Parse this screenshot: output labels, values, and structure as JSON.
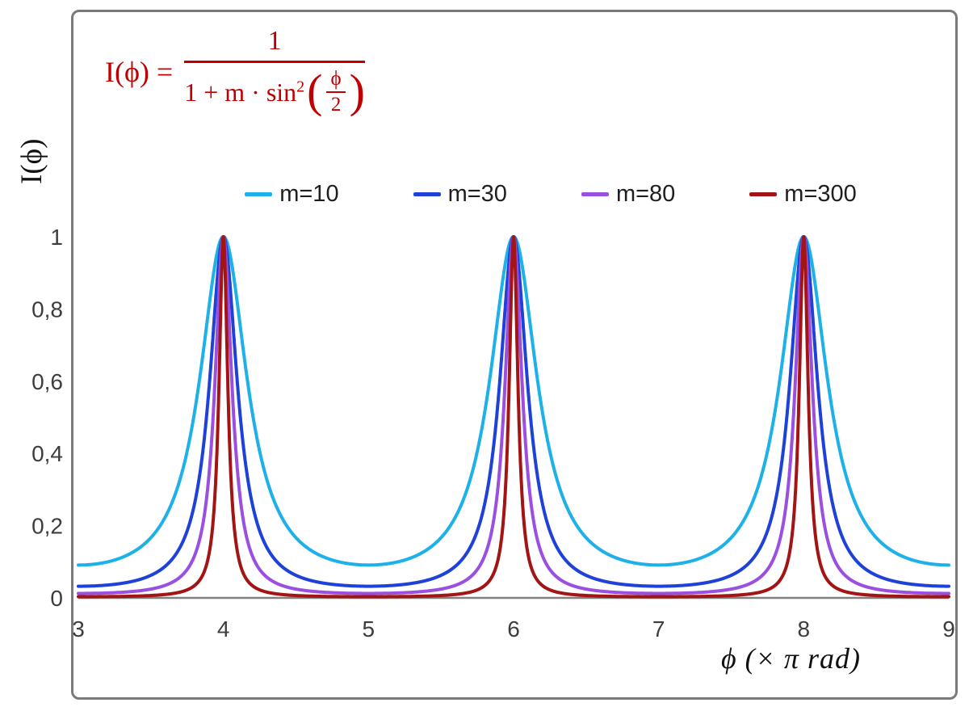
{
  "chart_frame": {
    "border_color": "#7a7a7a"
  },
  "formula": {
    "color": "#c00000",
    "lhs": "I(ϕ) =",
    "numerator": "1",
    "den_prefix": "1 + m · sin",
    "den_exponent": "2",
    "lparen": "(",
    "rparen": ")",
    "inner_numerator": "ϕ",
    "inner_denominator": "2"
  },
  "chart_data": {
    "type": "line",
    "title": "",
    "xlabel": "ϕ  (× π rad)",
    "ylabel": "I(ϕ)",
    "formula": "I(phi) = 1 / (1 + m * sin^2(phi/2)), x axis in units of pi rad",
    "xlim": [
      3,
      9
    ],
    "ylim": [
      0,
      1
    ],
    "grid": false,
    "legend_position": "top-center",
    "axis_color": "#808080",
    "tick_color": "#3d3d3d",
    "peaks_at_x": [
      4,
      6,
      8
    ],
    "peak_value": 1,
    "x_ticks": [
      {
        "v": 3,
        "label": "3"
      },
      {
        "v": 4,
        "label": "4"
      },
      {
        "v": 5,
        "label": "5"
      },
      {
        "v": 6,
        "label": "6"
      },
      {
        "v": 7,
        "label": "7"
      },
      {
        "v": 8,
        "label": "8"
      },
      {
        "v": 9,
        "label": "9"
      }
    ],
    "y_ticks": [
      {
        "v": 0,
        "label": "0"
      },
      {
        "v": 0.2,
        "label": "0,2"
      },
      {
        "v": 0.4,
        "label": "0,4"
      },
      {
        "v": 0.6,
        "label": "0,6"
      },
      {
        "v": 0.8,
        "label": "0,8"
      },
      {
        "v": 1,
        "label": "1"
      }
    ],
    "series": [
      {
        "name": "m=10",
        "m": 10,
        "color": "#1db1e8"
      },
      {
        "name": "m=30",
        "m": 30,
        "color": "#1e41d9"
      },
      {
        "name": "m=80",
        "m": 80,
        "color": "#9b4fe0"
      },
      {
        "name": "m=300",
        "m": 300,
        "color": "#a31414"
      }
    ]
  }
}
